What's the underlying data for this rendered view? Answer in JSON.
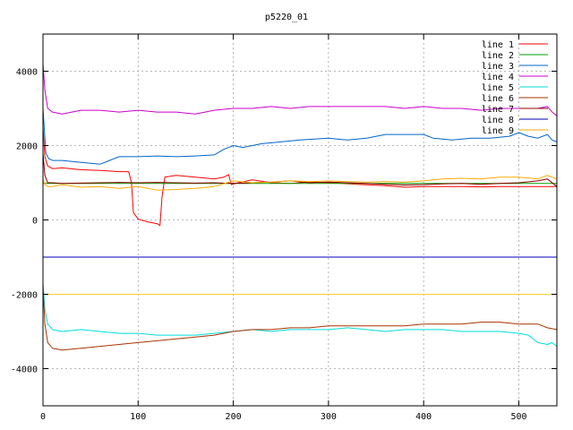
{
  "chart_data": {
    "type": "line",
    "title": "p5220_01",
    "xlabel": "",
    "ylabel": "",
    "xlim": [
      0,
      540
    ],
    "ylim": [
      -5000,
      5000
    ],
    "grid": true,
    "legend_position": "top-right",
    "x_ticks": [
      0,
      100,
      200,
      300,
      400,
      500
    ],
    "y_ticks": [
      -4000,
      -2000,
      0,
      2000,
      4000
    ],
    "series": [
      {
        "name": "line 1",
        "color": "#ff0000",
        "points": [
          [
            0,
            2500
          ],
          [
            2,
            1700
          ],
          [
            5,
            1450
          ],
          [
            10,
            1380
          ],
          [
            20,
            1400
          ],
          [
            40,
            1350
          ],
          [
            60,
            1330
          ],
          [
            80,
            1300
          ],
          [
            90,
            1300
          ],
          [
            93,
            1000
          ],
          [
            95,
            200
          ],
          [
            100,
            20
          ],
          [
            110,
            -50
          ],
          [
            120,
            -100
          ],
          [
            123,
            -150
          ],
          [
            125,
            600
          ],
          [
            128,
            1150
          ],
          [
            140,
            1200
          ],
          [
            160,
            1150
          ],
          [
            180,
            1100
          ],
          [
            190,
            1150
          ],
          [
            195,
            1220
          ],
          [
            198,
            950
          ],
          [
            205,
            1000
          ],
          [
            220,
            1080
          ],
          [
            240,
            1000
          ],
          [
            260,
            980
          ],
          [
            280,
            1020
          ],
          [
            300,
            1000
          ],
          [
            330,
            960
          ],
          [
            360,
            920
          ],
          [
            380,
            880
          ],
          [
            400,
            900
          ],
          [
            420,
            900
          ],
          [
            440,
            900
          ],
          [
            460,
            890
          ],
          [
            480,
            900
          ],
          [
            500,
            900
          ],
          [
            520,
            900
          ],
          [
            540,
            900
          ]
        ]
      },
      {
        "name": "line 2",
        "color": "#00a000",
        "points": [
          [
            0,
            980
          ],
          [
            540,
            980
          ]
        ]
      },
      {
        "name": "line 3",
        "color": "#0066cc",
        "points": [
          [
            0,
            3000
          ],
          [
            3,
            1800
          ],
          [
            6,
            1650
          ],
          [
            10,
            1600
          ],
          [
            20,
            1600
          ],
          [
            40,
            1550
          ],
          [
            60,
            1500
          ],
          [
            70,
            1600
          ],
          [
            80,
            1700
          ],
          [
            100,
            1700
          ],
          [
            120,
            1720
          ],
          [
            140,
            1700
          ],
          [
            160,
            1720
          ],
          [
            180,
            1750
          ],
          [
            190,
            1900
          ],
          [
            200,
            2000
          ],
          [
            210,
            1950
          ],
          [
            230,
            2050
          ],
          [
            250,
            2100
          ],
          [
            270,
            2150
          ],
          [
            300,
            2200
          ],
          [
            320,
            2150
          ],
          [
            340,
            2200
          ],
          [
            360,
            2300
          ],
          [
            380,
            2300
          ],
          [
            400,
            2300
          ],
          [
            410,
            2200
          ],
          [
            430,
            2150
          ],
          [
            450,
            2200
          ],
          [
            470,
            2200
          ],
          [
            490,
            2250
          ],
          [
            500,
            2350
          ],
          [
            510,
            2250
          ],
          [
            520,
            2200
          ],
          [
            530,
            2300
          ],
          [
            535,
            2150
          ],
          [
            540,
            2100
          ]
        ]
      },
      {
        "name": "line 4",
        "color": "#cc00cc",
        "points": [
          [
            0,
            4200
          ],
          [
            2,
            3500
          ],
          [
            5,
            3000
          ],
          [
            10,
            2900
          ],
          [
            20,
            2850
          ],
          [
            40,
            2950
          ],
          [
            60,
            2950
          ],
          [
            80,
            2900
          ],
          [
            100,
            2950
          ],
          [
            120,
            2900
          ],
          [
            140,
            2900
          ],
          [
            160,
            2850
          ],
          [
            180,
            2950
          ],
          [
            200,
            3000
          ],
          [
            220,
            3000
          ],
          [
            240,
            3050
          ],
          [
            260,
            3000
          ],
          [
            280,
            3050
          ],
          [
            300,
            3050
          ],
          [
            320,
            3050
          ],
          [
            340,
            3050
          ],
          [
            360,
            3050
          ],
          [
            380,
            3000
          ],
          [
            400,
            3050
          ],
          [
            420,
            3000
          ],
          [
            440,
            3000
          ],
          [
            460,
            2950
          ],
          [
            480,
            3000
          ],
          [
            500,
            3000
          ],
          [
            520,
            3000
          ],
          [
            530,
            3050
          ],
          [
            535,
            2900
          ],
          [
            540,
            2800
          ]
        ]
      },
      {
        "name": "line 5",
        "color": "#00dddd",
        "points": [
          [
            0,
            -1700
          ],
          [
            2,
            -2400
          ],
          [
            5,
            -2800
          ],
          [
            10,
            -2950
          ],
          [
            20,
            -3000
          ],
          [
            40,
            -2950
          ],
          [
            60,
            -3000
          ],
          [
            80,
            -3050
          ],
          [
            100,
            -3050
          ],
          [
            120,
            -3100
          ],
          [
            140,
            -3100
          ],
          [
            160,
            -3100
          ],
          [
            180,
            -3050
          ],
          [
            200,
            -3000
          ],
          [
            220,
            -2950
          ],
          [
            240,
            -3000
          ],
          [
            260,
            -2950
          ],
          [
            280,
            -2950
          ],
          [
            300,
            -2950
          ],
          [
            320,
            -2900
          ],
          [
            340,
            -2950
          ],
          [
            360,
            -3000
          ],
          [
            380,
            -2950
          ],
          [
            400,
            -2950
          ],
          [
            420,
            -2950
          ],
          [
            440,
            -3000
          ],
          [
            460,
            -3000
          ],
          [
            480,
            -3000
          ],
          [
            500,
            -3050
          ],
          [
            510,
            -3100
          ],
          [
            520,
            -3300
          ],
          [
            530,
            -3350
          ],
          [
            535,
            -3300
          ],
          [
            540,
            -3400
          ]
        ]
      },
      {
        "name": "line 6",
        "color": "#aa3300",
        "points": [
          [
            0,
            -1800
          ],
          [
            2,
            -2800
          ],
          [
            5,
            -3300
          ],
          [
            10,
            -3450
          ],
          [
            20,
            -3500
          ],
          [
            40,
            -3450
          ],
          [
            60,
            -3400
          ],
          [
            80,
            -3350
          ],
          [
            100,
            -3300
          ],
          [
            120,
            -3250
          ],
          [
            140,
            -3200
          ],
          [
            160,
            -3150
          ],
          [
            180,
            -3100
          ],
          [
            200,
            -3000
          ],
          [
            220,
            -2950
          ],
          [
            240,
            -2950
          ],
          [
            260,
            -2900
          ],
          [
            280,
            -2900
          ],
          [
            300,
            -2850
          ],
          [
            320,
            -2850
          ],
          [
            340,
            -2850
          ],
          [
            360,
            -2850
          ],
          [
            380,
            -2850
          ],
          [
            400,
            -2800
          ],
          [
            420,
            -2800
          ],
          [
            440,
            -2800
          ],
          [
            460,
            -2750
          ],
          [
            480,
            -2750
          ],
          [
            500,
            -2800
          ],
          [
            520,
            -2800
          ],
          [
            530,
            -2900
          ],
          [
            540,
            -2950
          ]
        ]
      },
      {
        "name": "line 7",
        "color": "#8b0000",
        "points": [
          [
            0,
            1800
          ],
          [
            2,
            1200
          ],
          [
            5,
            1000
          ],
          [
            10,
            1000
          ],
          [
            20,
            980
          ],
          [
            40,
            990
          ],
          [
            60,
            1000
          ],
          [
            80,
            1010
          ],
          [
            100,
            1000
          ],
          [
            120,
            1010
          ],
          [
            140,
            1000
          ],
          [
            160,
            990
          ],
          [
            180,
            1000
          ],
          [
            200,
            980
          ],
          [
            220,
            1000
          ],
          [
            240,
            1020
          ],
          [
            260,
            1050
          ],
          [
            280,
            1000
          ],
          [
            300,
            1020
          ],
          [
            320,
            1000
          ],
          [
            340,
            980
          ],
          [
            360,
            960
          ],
          [
            380,
            940
          ],
          [
            400,
            950
          ],
          [
            420,
            970
          ],
          [
            440,
            980
          ],
          [
            460,
            960
          ],
          [
            480,
            980
          ],
          [
            500,
            1000
          ],
          [
            520,
            1050
          ],
          [
            530,
            1100
          ],
          [
            540,
            900
          ]
        ]
      },
      {
        "name": "line 8",
        "color": "#0000bb",
        "points": [
          [
            0,
            -1000
          ],
          [
            540,
            -1000
          ]
        ]
      },
      {
        "name": "line 9",
        "color": "#ffaa00",
        "points": [
          [
            0,
            1100
          ],
          [
            2,
            950
          ],
          [
            5,
            900
          ],
          [
            10,
            900
          ],
          [
            20,
            950
          ],
          [
            40,
            880
          ],
          [
            60,
            900
          ],
          [
            80,
            850
          ],
          [
            100,
            900
          ],
          [
            120,
            800
          ],
          [
            140,
            820
          ],
          [
            160,
            850
          ],
          [
            180,
            900
          ],
          [
            200,
            1050
          ],
          [
            220,
            1000
          ],
          [
            240,
            1020
          ],
          [
            260,
            1050
          ],
          [
            280,
            1030
          ],
          [
            300,
            1050
          ],
          [
            320,
            1030
          ],
          [
            340,
            1020
          ],
          [
            360,
            1030
          ],
          [
            380,
            1020
          ],
          [
            400,
            1050
          ],
          [
            420,
            1100
          ],
          [
            440,
            1120
          ],
          [
            460,
            1100
          ],
          [
            480,
            1150
          ],
          [
            500,
            1150
          ],
          [
            520,
            1100
          ],
          [
            530,
            1200
          ],
          [
            540,
            1100
          ]
        ]
      },
      {
        "name": "",
        "color": "#ffcc33",
        "points": [
          [
            0,
            -2000
          ],
          [
            540,
            -2000
          ]
        ]
      }
    ]
  }
}
